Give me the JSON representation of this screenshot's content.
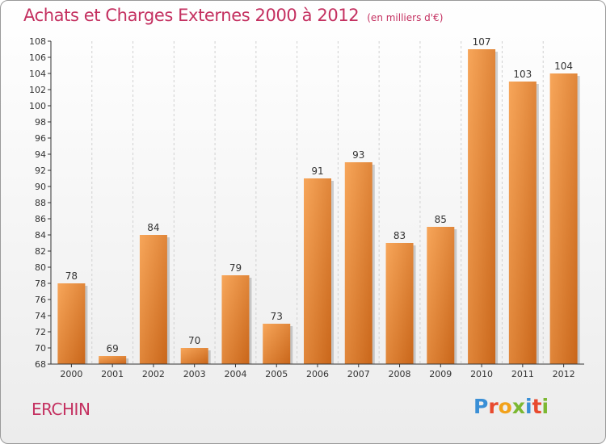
{
  "header": {
    "title": "Achats et Charges Externes 2000 à 2012",
    "unit": "(en milliers d'€)"
  },
  "footer": {
    "town": "ERCHIN",
    "logo_text": "Proxiti"
  },
  "colors": {
    "title": "#c43060",
    "bar_light": "#f7a65a",
    "bar_dark": "#c9661a",
    "axis": "#333333",
    "grid": "#d0d0d0"
  },
  "chart_data": {
    "type": "bar",
    "title": "Achats et Charges Externes 2000 à 2012",
    "subtitle": "(en milliers d'€)",
    "categories": [
      "2000",
      "2001",
      "2002",
      "2003",
      "2004",
      "2005",
      "2006",
      "2007",
      "2008",
      "2009",
      "2010",
      "2011",
      "2012"
    ],
    "values": [
      78,
      69,
      84,
      70,
      79,
      73,
      91,
      93,
      83,
      85,
      107,
      103,
      104
    ],
    "ylim": [
      68,
      108
    ],
    "ytick_step": 2,
    "grid": "dashed-vertical",
    "data_labels": true
  }
}
